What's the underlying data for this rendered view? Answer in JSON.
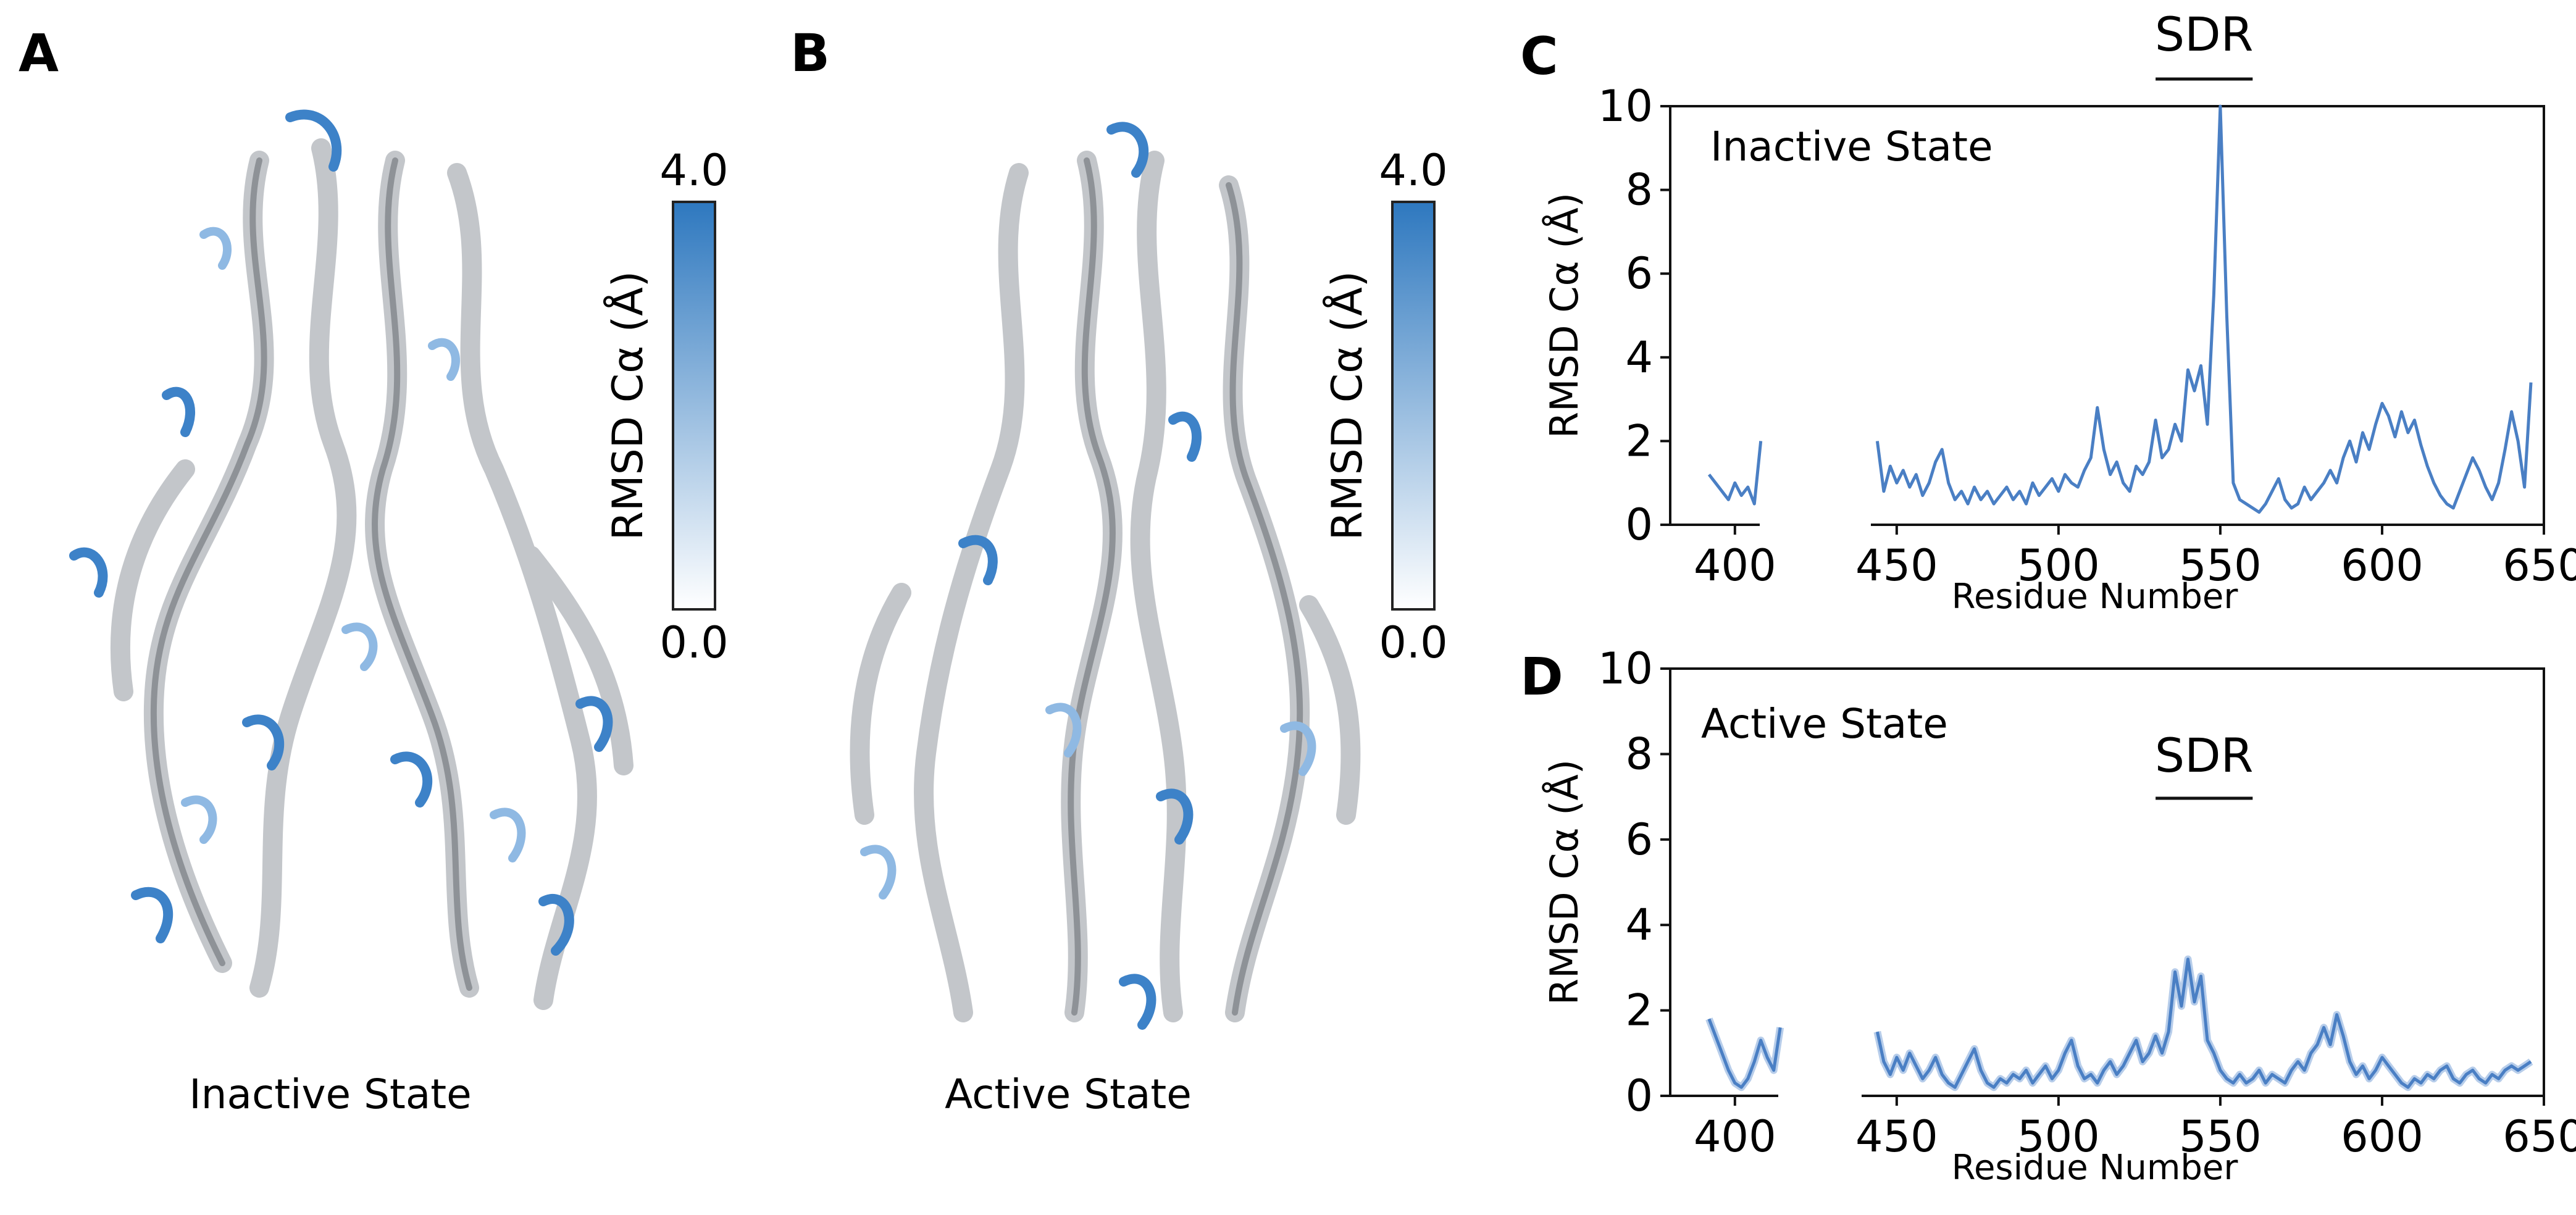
{
  "panels": {
    "a": {
      "letter": "A",
      "caption": "Inactive State",
      "colorbar": {
        "label": "RMSD Cα (Å)",
        "max": "4.0",
        "min": "0.0",
        "color_low": "#ffffff",
        "color_high": "#2e78bf"
      }
    },
    "b": {
      "letter": "B",
      "caption": "Active State",
      "colorbar": {
        "label": "RMSD Cα (Å)",
        "max": "4.0",
        "min": "0.0",
        "color_low": "#ffffff",
        "color_high": "#2e78bf"
      }
    },
    "c": {
      "letter": "C"
    },
    "d": {
      "letter": "D"
    }
  },
  "colors": {
    "line": "#4a7fc4",
    "ribbon_grey": "#b9bcc0",
    "ribbon_blue": "#3d82c8"
  },
  "chart_data": [
    {
      "type": "line",
      "panel": "C",
      "annotation": "Inactive State",
      "region_label": "SDR",
      "region_x": [
        530,
        560
      ],
      "ylabel": "RMSD Cα (Å)",
      "xlabel": "Residue Number",
      "xlim": [
        380,
        650
      ],
      "ylim": [
        0,
        10
      ],
      "xticks": [
        "400",
        "450",
        "500",
        "550",
        "600",
        "650"
      ],
      "yticks": [
        "0",
        "2",
        "4",
        "6",
        "8",
        "10"
      ],
      "segments": [
        {
          "x": [
            392,
            394,
            396,
            398,
            400,
            402,
            404,
            406,
            408
          ],
          "y": [
            1.2,
            1.0,
            0.8,
            0.6,
            1.0,
            0.7,
            0.9,
            0.5,
            2.0
          ]
        },
        {
          "x": [
            444,
            446,
            448,
            450,
            452,
            454,
            456,
            458,
            460,
            462,
            464,
            466,
            468,
            470,
            472,
            474,
            476,
            478,
            480,
            482,
            484,
            486,
            488,
            490,
            492,
            494,
            496,
            498,
            500,
            502,
            504,
            506,
            508,
            510,
            512,
            514,
            516,
            518,
            520,
            522,
            524,
            526,
            528,
            530,
            532,
            534,
            536,
            538,
            540,
            542,
            544,
            546,
            548,
            550,
            552,
            554,
            556,
            558,
            560,
            562,
            564,
            566,
            568,
            570,
            572,
            574,
            576,
            578,
            580,
            582,
            584,
            586,
            588,
            590,
            592,
            594,
            596,
            598,
            600,
            602,
            604,
            606,
            608,
            610,
            612,
            614,
            616,
            618,
            620,
            622,
            624,
            626,
            628,
            630,
            632,
            634,
            636,
            638,
            640,
            642,
            644,
            646
          ],
          "y": [
            2.0,
            0.8,
            1.4,
            1.0,
            1.3,
            0.9,
            1.2,
            0.7,
            1.0,
            1.5,
            1.8,
            1.0,
            0.6,
            0.8,
            0.5,
            0.9,
            0.6,
            0.8,
            0.5,
            0.7,
            0.9,
            0.6,
            0.8,
            0.5,
            1.0,
            0.7,
            0.9,
            1.1,
            0.8,
            1.2,
            1.0,
            0.9,
            1.3,
            1.6,
            2.8,
            1.8,
            1.2,
            1.5,
            1.0,
            0.8,
            1.4,
            1.2,
            1.5,
            2.5,
            1.6,
            1.8,
            2.4,
            2.0,
            3.7,
            3.2,
            3.8,
            2.4,
            5.5,
            10.0,
            5.0,
            1.0,
            0.6,
            0.5,
            0.4,
            0.3,
            0.5,
            0.8,
            1.1,
            0.6,
            0.4,
            0.5,
            0.9,
            0.6,
            0.8,
            1.0,
            1.3,
            1.0,
            1.6,
            2.0,
            1.5,
            2.2,
            1.8,
            2.4,
            2.9,
            2.6,
            2.1,
            2.7,
            2.2,
            2.5,
            1.9,
            1.4,
            1.0,
            0.7,
            0.5,
            0.4,
            0.8,
            1.2,
            1.6,
            1.3,
            0.9,
            0.6,
            1.0,
            1.8,
            2.7,
            2.0,
            0.9,
            3.4
          ]
        }
      ]
    },
    {
      "type": "line",
      "panel": "D",
      "annotation": "Active State",
      "region_label": "SDR",
      "region_x": [
        530,
        560
      ],
      "ylabel": "RMSD Cα (Å)",
      "xlabel": "Residue Number",
      "xlim": [
        380,
        650
      ],
      "ylim": [
        0,
        10
      ],
      "xticks": [
        "400",
        "450",
        "500",
        "550",
        "600",
        "650"
      ],
      "yticks": [
        "0",
        "2",
        "4",
        "6",
        "8",
        "10"
      ],
      "segments": [
        {
          "x": [
            392,
            394,
            396,
            398,
            400,
            402,
            404,
            406,
            408,
            410,
            412,
            414
          ],
          "y": [
            1.8,
            1.4,
            1.0,
            0.6,
            0.3,
            0.2,
            0.4,
            0.8,
            1.3,
            0.9,
            0.6,
            1.6
          ]
        },
        {
          "x": [
            444,
            446,
            448,
            450,
            452,
            454,
            456,
            458,
            460,
            462,
            464,
            466,
            468,
            470,
            472,
            474,
            476,
            478,
            480,
            482,
            484,
            486,
            488,
            490,
            492,
            494,
            496,
            498,
            500,
            502,
            504,
            506,
            508,
            510,
            512,
            514,
            516,
            518,
            520,
            522,
            524,
            526,
            528,
            530,
            532,
            534,
            536,
            538,
            540,
            542,
            544,
            546,
            548,
            550,
            552,
            554,
            556,
            558,
            560,
            562,
            564,
            566,
            568,
            570,
            572,
            574,
            576,
            578,
            580,
            582,
            584,
            586,
            588,
            590,
            592,
            594,
            596,
            598,
            600,
            602,
            604,
            606,
            608,
            610,
            612,
            614,
            616,
            618,
            620,
            622,
            624,
            626,
            628,
            630,
            632,
            634,
            636,
            638,
            640,
            642,
            644,
            646
          ],
          "y": [
            1.5,
            0.8,
            0.5,
            0.9,
            0.6,
            1.0,
            0.7,
            0.4,
            0.6,
            0.9,
            0.5,
            0.3,
            0.2,
            0.5,
            0.8,
            1.1,
            0.6,
            0.3,
            0.2,
            0.4,
            0.3,
            0.5,
            0.4,
            0.6,
            0.3,
            0.5,
            0.7,
            0.4,
            0.6,
            1.0,
            1.3,
            0.7,
            0.4,
            0.5,
            0.3,
            0.6,
            0.8,
            0.5,
            0.7,
            1.0,
            1.3,
            0.8,
            1.0,
            1.4,
            1.0,
            1.5,
            2.9,
            2.1,
            3.2,
            2.2,
            2.8,
            1.3,
            1.0,
            0.6,
            0.4,
            0.3,
            0.5,
            0.3,
            0.4,
            0.6,
            0.3,
            0.5,
            0.4,
            0.3,
            0.6,
            0.8,
            0.6,
            1.0,
            1.2,
            1.6,
            1.2,
            1.9,
            1.4,
            0.8,
            0.5,
            0.7,
            0.4,
            0.6,
            0.9,
            0.7,
            0.5,
            0.3,
            0.2,
            0.4,
            0.3,
            0.5,
            0.4,
            0.6,
            0.7,
            0.4,
            0.3,
            0.5,
            0.6,
            0.4,
            0.3,
            0.5,
            0.4,
            0.6,
            0.7,
            0.6,
            0.7,
            0.8
          ]
        }
      ]
    }
  ]
}
